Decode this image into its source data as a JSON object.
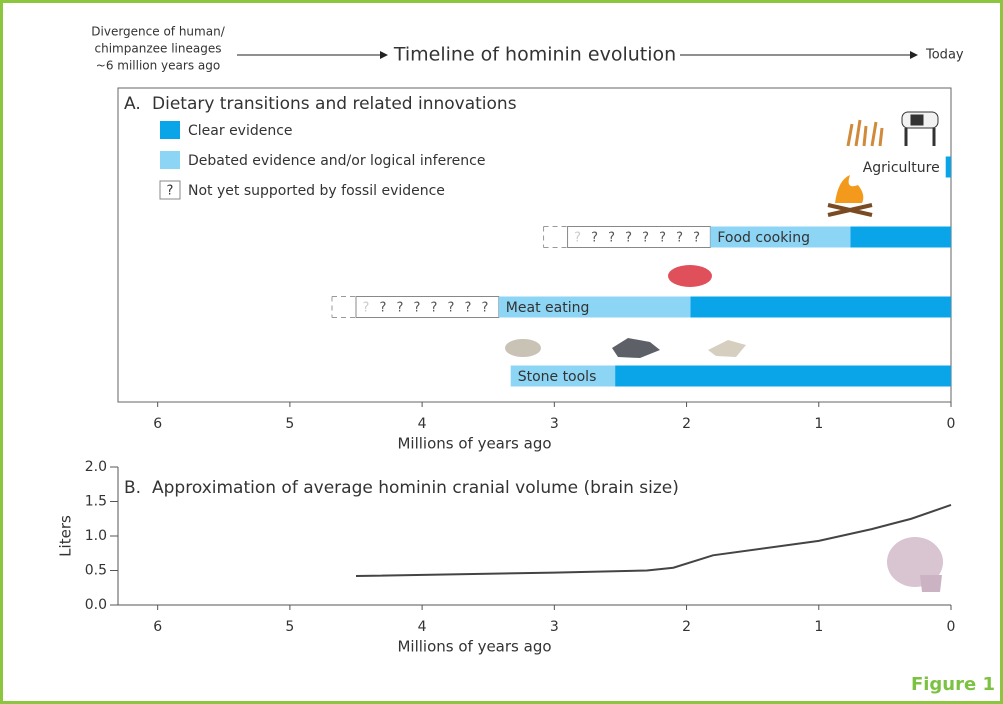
{
  "header": {
    "divergence": [
      "Divergence of human/",
      "chimpanzee lineages",
      "~6 million years ago"
    ],
    "title": "Timeline of hominin evolution",
    "today": "Today"
  },
  "figure_label": "Figure 1",
  "chart_data": [
    {
      "type": "timeline",
      "panel": "A.",
      "title": "Dietary transitions and related innovations",
      "xlabel": "Millions of years ago",
      "xlim": [
        6.3,
        0
      ],
      "xticks": [
        6,
        5,
        4,
        3,
        2,
        1,
        0
      ],
      "legend": {
        "clear": {
          "name": "Clear evidence",
          "color": "#0aa5e8"
        },
        "debated": {
          "name": "Debated evidence and/or logical inference",
          "color": "#8dd5f4"
        },
        "unsupported": {
          "name": "Not yet supported by fossil evidence",
          "symbol": "?"
        }
      },
      "rows": [
        {
          "name": "Agriculture",
          "clear": [
            0.04,
            0
          ]
        },
        {
          "name": "Food cooking",
          "unsupported": [
            2.9,
            1.82
          ],
          "debated": [
            1.82,
            0.76
          ],
          "clear": [
            0.76,
            0
          ]
        },
        {
          "name": "Meat eating",
          "unsupported": [
            4.5,
            3.42
          ],
          "debated": [
            3.42,
            1.97
          ],
          "clear": [
            1.97,
            0
          ]
        },
        {
          "name": "Stone tools",
          "debated": [
            3.33,
            2.54
          ],
          "clear": [
            2.54,
            0
          ]
        }
      ]
    },
    {
      "type": "line",
      "panel": "B.",
      "title": "Approximation of average hominin cranial volume (brain size)",
      "xlabel": "Millions of years ago",
      "ylabel": "Liters",
      "xlim": [
        6.3,
        0
      ],
      "xticks": [
        6,
        5,
        4,
        3,
        2,
        1,
        0
      ],
      "ylim": [
        0,
        2
      ],
      "yticks": [
        {
          "value": 0,
          "label": "0.0"
        },
        {
          "value": 0.5,
          "label": "0.5"
        },
        {
          "value": 1,
          "label": "1.0"
        },
        {
          "value": 1.5,
          "label": "1.5"
        },
        {
          "value": 2,
          "label": "2.0"
        }
      ],
      "x": [
        4.5,
        3,
        2.3,
        2.1,
        1.8,
        1,
        0.6,
        0.3,
        0
      ],
      "series": [
        {
          "color": "#444444",
          "values": [
            0.42,
            0.47,
            0.5,
            0.54,
            0.72,
            0.93,
            1.1,
            1.25,
            1.45
          ]
        }
      ]
    }
  ]
}
